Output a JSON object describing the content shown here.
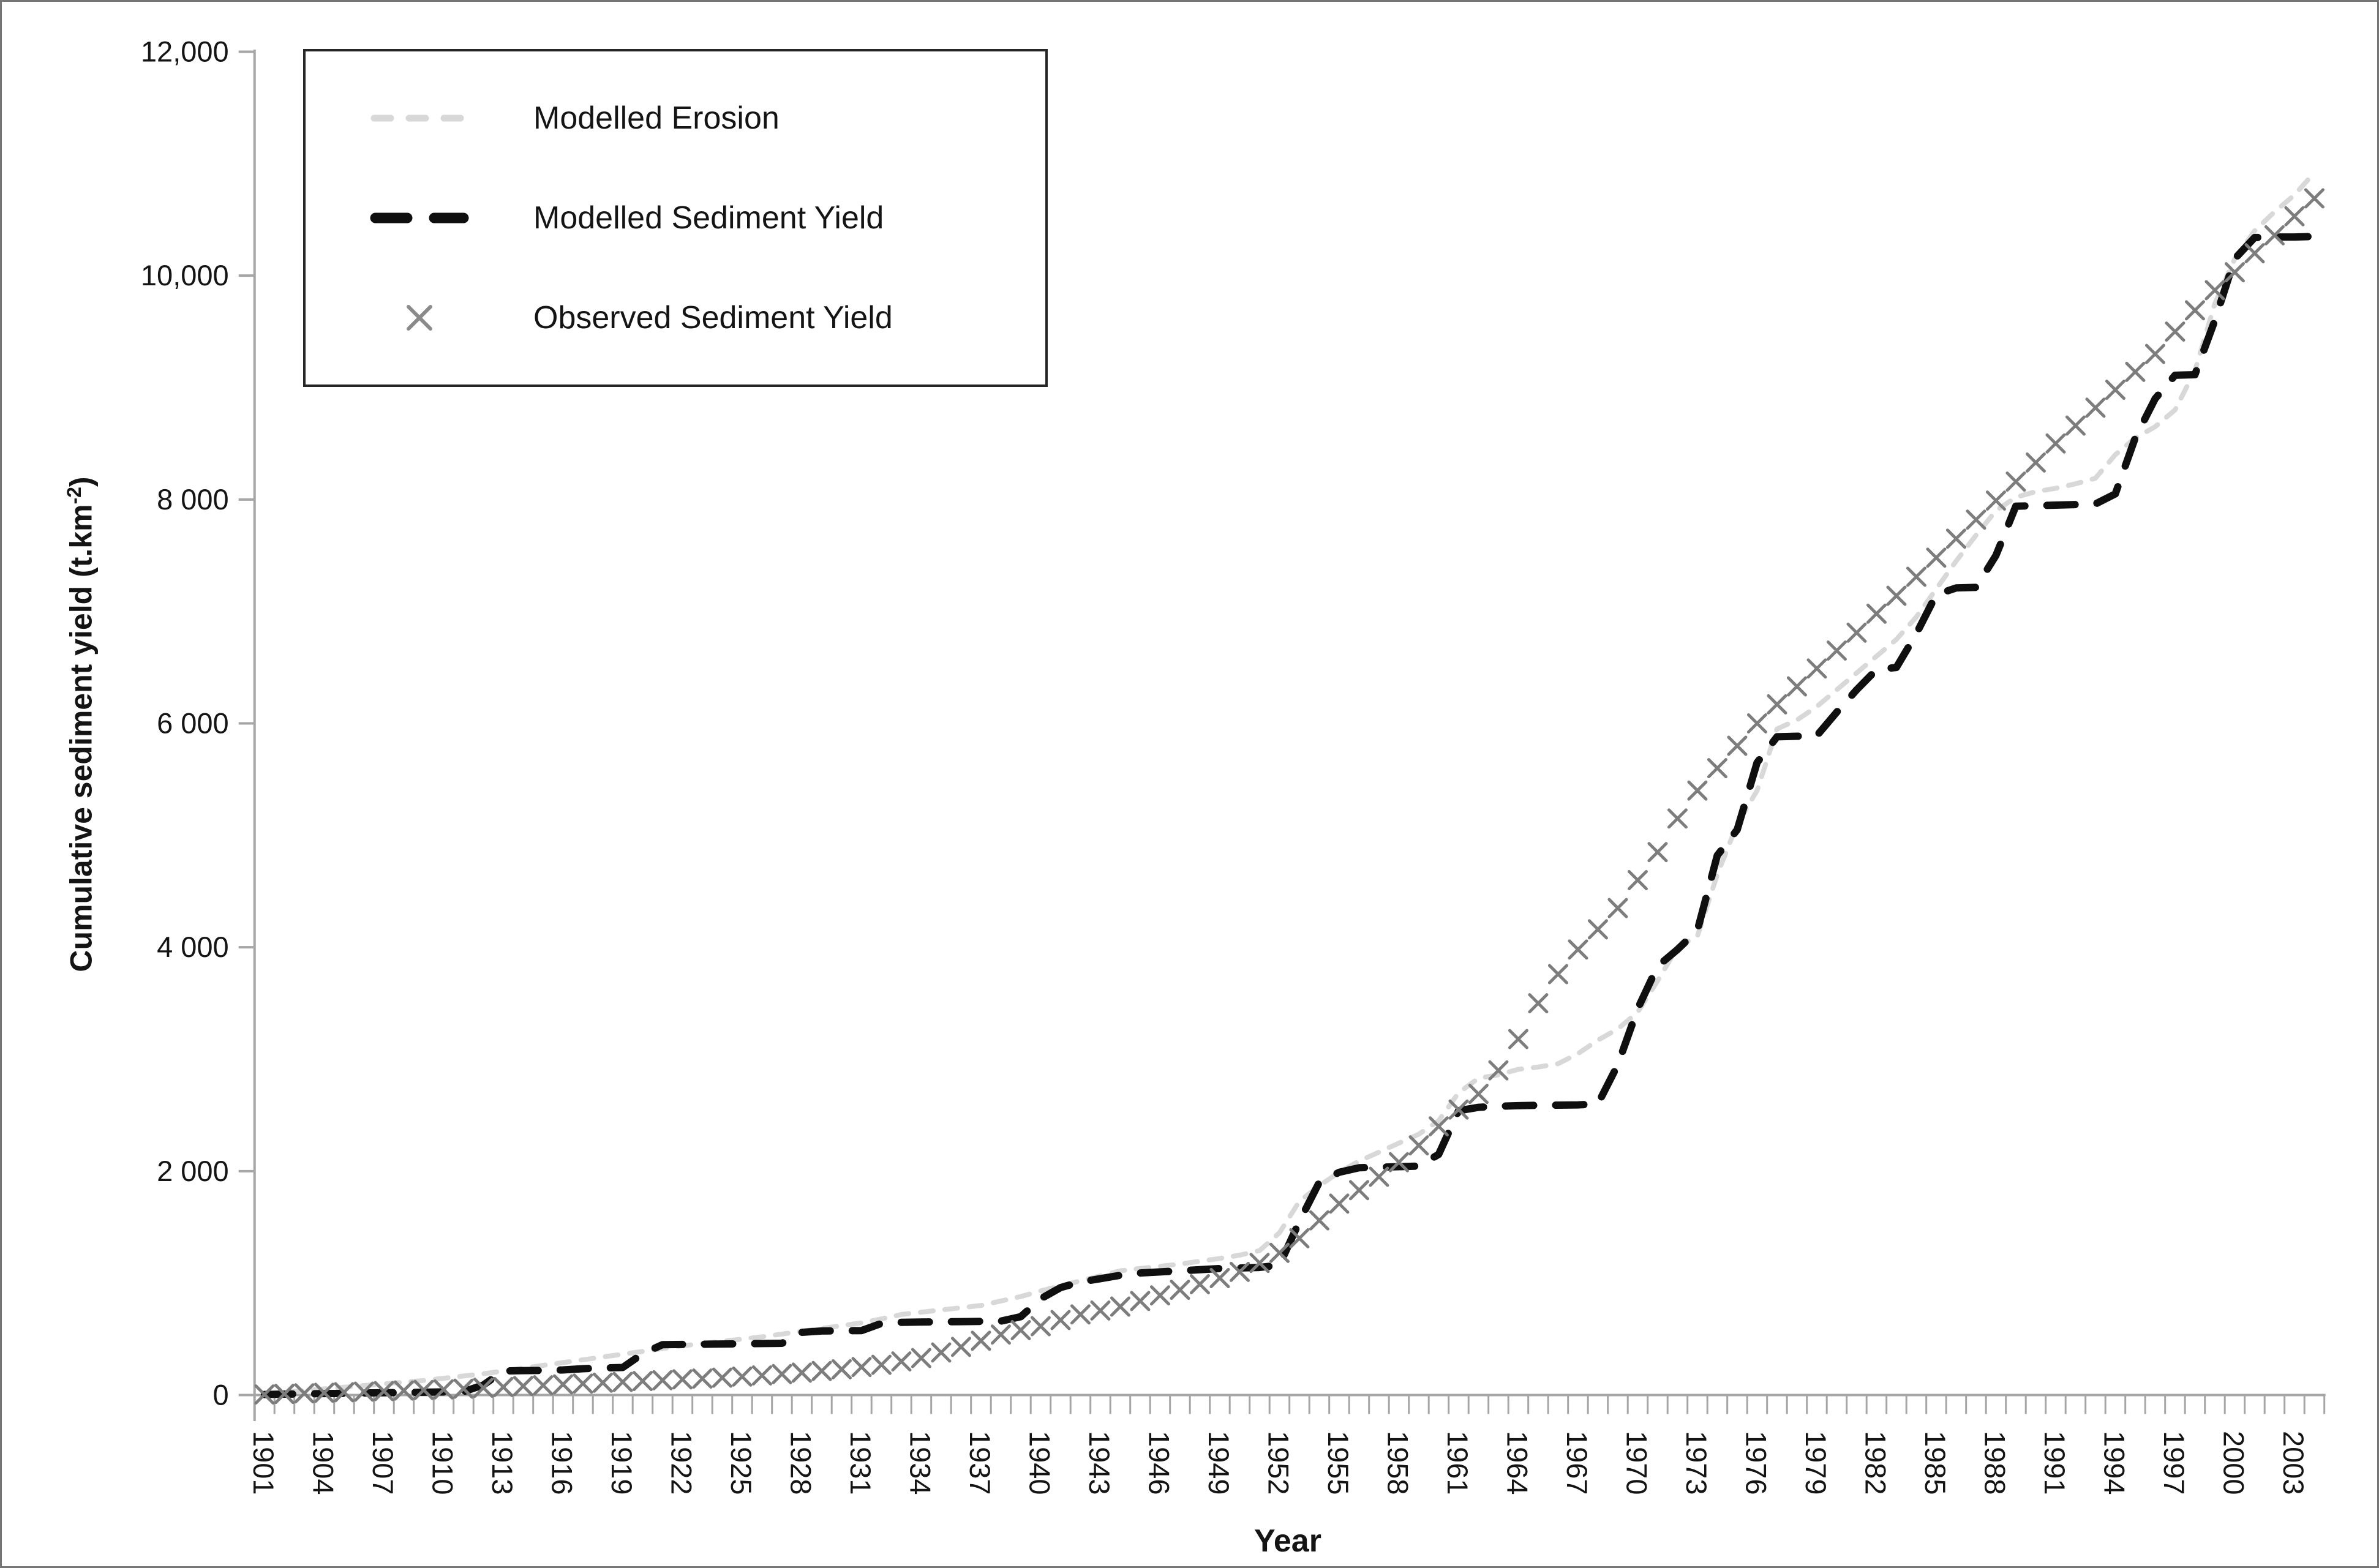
{
  "figure": {
    "background": "#ffffff",
    "border_color": "#767676",
    "text_color": "#141414",
    "axis_color": "#a6a6a6"
  },
  "axes": {
    "x_title": "Year",
    "y_title_prefix": "Cumulative sediment yield (t.km",
    "y_title_sup": "-2",
    "y_title_suffix": ")",
    "y_ticks": [
      {
        "value": 0,
        "label": "0"
      },
      {
        "value": 2000,
        "label": "2 000"
      },
      {
        "value": 4000,
        "label": "4 000"
      },
      {
        "value": 6000,
        "label": "6 000"
      },
      {
        "value": 8000,
        "label": "8 000"
      },
      {
        "value": 10000,
        "label": "10,000"
      },
      {
        "value": 12000,
        "label": "12,000"
      }
    ],
    "x_tick_years": [
      1901,
      1904,
      1907,
      1910,
      1913,
      1916,
      1919,
      1922,
      1925,
      1928,
      1931,
      1934,
      1937,
      1940,
      1943,
      1946,
      1949,
      1952,
      1955,
      1958,
      1961,
      1964,
      1967,
      1970,
      1973,
      1976,
      1979,
      1982,
      1985,
      1988,
      1991,
      1994,
      1997,
      2000,
      2003
    ]
  },
  "chart_data": {
    "type": "line",
    "title": "",
    "xlabel": "Year",
    "ylabel": "Cumulative sediment yield (t.km-2)",
    "xlim": [
      1901,
      2004
    ],
    "ylim": [
      0,
      12000
    ],
    "grid": false,
    "legend_position": "top-left-inside",
    "x": [
      1901,
      1902,
      1903,
      1904,
      1905,
      1906,
      1907,
      1908,
      1909,
      1910,
      1911,
      1912,
      1913,
      1914,
      1915,
      1916,
      1917,
      1918,
      1919,
      1920,
      1921,
      1922,
      1923,
      1924,
      1925,
      1926,
      1927,
      1928,
      1929,
      1930,
      1931,
      1932,
      1933,
      1934,
      1935,
      1936,
      1937,
      1938,
      1939,
      1940,
      1941,
      1942,
      1943,
      1944,
      1945,
      1946,
      1947,
      1948,
      1949,
      1950,
      1951,
      1952,
      1953,
      1954,
      1955,
      1956,
      1957,
      1958,
      1959,
      1960,
      1961,
      1962,
      1963,
      1964,
      1965,
      1966,
      1967,
      1968,
      1969,
      1970,
      1971,
      1972,
      1973,
      1974,
      1975,
      1976,
      1977,
      1978,
      1979,
      1980,
      1981,
      1982,
      1983,
      1984,
      1985,
      1986,
      1987,
      1988,
      1989,
      1990,
      1991,
      1992,
      1993,
      1994,
      1995,
      1996,
      1997,
      1998,
      1999,
      2000,
      2001,
      2002,
      2003,
      2004
    ],
    "series": [
      {
        "name": "Modelled Erosion",
        "style": "dashed",
        "color": "#d8d8d8",
        "line_width": 8,
        "values": [
          10,
          25,
          40,
          55,
          70,
          85,
          100,
          115,
          130,
          150,
          170,
          190,
          215,
          240,
          265,
          290,
          315,
          340,
          365,
          390,
          415,
          440,
          460,
          480,
          500,
          520,
          545,
          570,
          595,
          620,
          645,
          680,
          720,
          740,
          760,
          780,
          800,
          840,
          880,
          930,
          975,
          1020,
          1065,
          1110,
          1130,
          1150,
          1170,
          1195,
          1220,
          1250,
          1290,
          1450,
          1730,
          1870,
          1990,
          2090,
          2170,
          2250,
          2330,
          2450,
          2700,
          2830,
          2860,
          2910,
          2930,
          2960,
          3050,
          3170,
          3270,
          3420,
          3700,
          4000,
          4100,
          4650,
          5100,
          5400,
          5950,
          6030,
          6150,
          6300,
          6450,
          6600,
          6750,
          6950,
          7200,
          7450,
          7680,
          7900,
          8020,
          8070,
          8100,
          8140,
          8190,
          8400,
          8550,
          8650,
          8800,
          9150,
          9750,
          10150,
          10400,
          10570,
          10720,
          10920
        ]
      },
      {
        "name": "Modelled Sediment Yield",
        "style": "dashed",
        "color": "#0f0f0f",
        "line_width": 12,
        "values": [
          5,
          8,
          10,
          13,
          15,
          18,
          20,
          23,
          25,
          28,
          30,
          90,
          215,
          218,
          220,
          224,
          235,
          242,
          246,
          370,
          450,
          452,
          454,
          456,
          458,
          460,
          462,
          560,
          572,
          574,
          576,
          640,
          650,
          652,
          654,
          656,
          658,
          660,
          700,
          860,
          960,
          1010,
          1040,
          1070,
          1090,
          1100,
          1110,
          1120,
          1130,
          1135,
          1140,
          1160,
          1550,
          1900,
          1990,
          2030,
          2035,
          2040,
          2045,
          2150,
          2540,
          2570,
          2580,
          2585,
          2588,
          2590,
          2592,
          2600,
          2950,
          3450,
          3830,
          3980,
          4150,
          4820,
          5050,
          5650,
          5880,
          5885,
          5890,
          6100,
          6300,
          6480,
          6500,
          6800,
          7150,
          7210,
          7215,
          7500,
          7940,
          7945,
          7950,
          7955,
          7960,
          8050,
          8550,
          8900,
          9110,
          9115,
          9600,
          10150,
          10340,
          10345,
          10345,
          10350
        ]
      },
      {
        "name": "Observed Sediment Yield",
        "style": "x-marker",
        "color": "#7d7d7d",
        "marker": "x",
        "values": [
          5,
          10,
          15,
          20,
          25,
          30,
          35,
          40,
          45,
          50,
          57,
          65,
          72,
          80,
          87,
          95,
          102,
          110,
          117,
          125,
          132,
          140,
          147,
          155,
          165,
          175,
          187,
          200,
          215,
          230,
          250,
          270,
          300,
          330,
          380,
          430,
          485,
          540,
          580,
          615,
          670,
          720,
          755,
          790,
          840,
          890,
          940,
          990,
          1045,
          1100,
          1180,
          1270,
          1400,
          1560,
          1710,
          1830,
          1950,
          2080,
          2230,
          2400,
          2550,
          2690,
          2900,
          3180,
          3500,
          3760,
          3980,
          4160,
          4350,
          4600,
          4850,
          5150,
          5400,
          5600,
          5800,
          6000,
          6170,
          6330,
          6490,
          6650,
          6810,
          6980,
          7140,
          7310,
          7480,
          7650,
          7820,
          7990,
          8160,
          8330,
          8500,
          8660,
          8820,
          8980,
          9140,
          9300,
          9500,
          9690,
          9870,
          10030,
          10200,
          10360,
          10530,
          10690
        ]
      }
    ]
  }
}
